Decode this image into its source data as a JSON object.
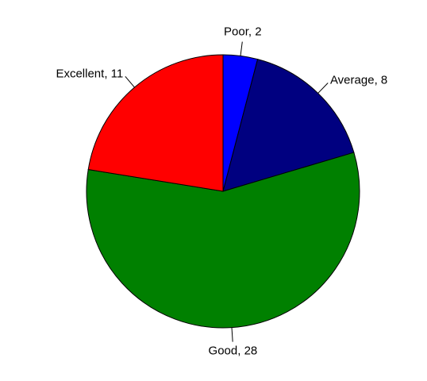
{
  "chart_data": {
    "type": "pie",
    "categories": [
      "Poor",
      "Average",
      "Good",
      "Excellent"
    ],
    "values": [
      2,
      8,
      28,
      11
    ],
    "colors": [
      "#0000ff",
      "#000080",
      "#008000",
      "#ff0000"
    ],
    "start_angle": 0,
    "direction": "clockwise"
  }
}
